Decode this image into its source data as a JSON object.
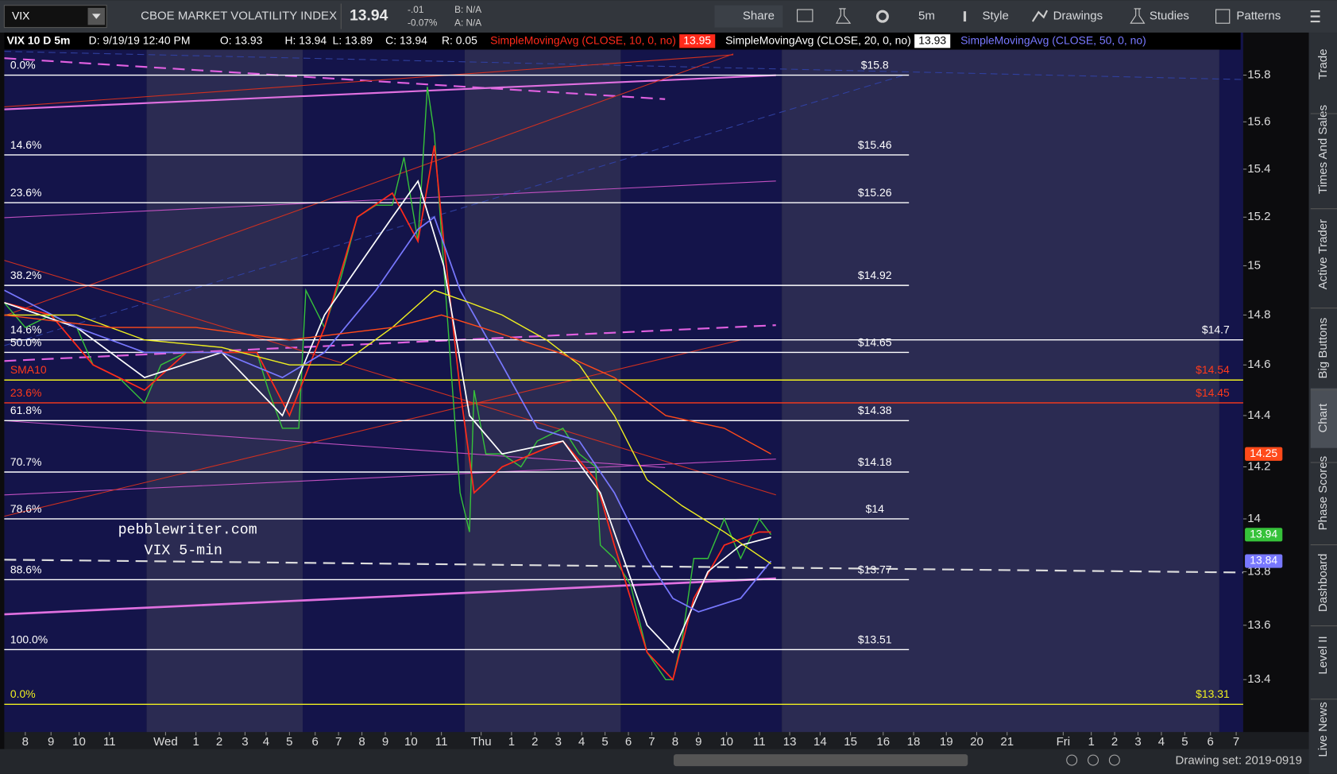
{
  "header": {
    "symbol": "VIX",
    "description": "CBOE MARKET VOLATILITY INDEX",
    "last": "13.94",
    "change": "-.01",
    "change_pct": "-0.07%",
    "bid": "B: N/A",
    "ask": "A: N/A",
    "buttons": [
      "Share",
      "5m",
      "Style",
      "Drawings",
      "Studies",
      "Patterns"
    ]
  },
  "info_bar": {
    "chart": "VIX 10 D 5m",
    "date": "D: 9/19/19 12:40 PM",
    "open": "O: 13.93",
    "high": "H: 13.94",
    "low": "L: 13.89",
    "close": "C: 13.94",
    "range": "R: 0.05"
  },
  "chart_data": {
    "type": "line",
    "log_y": true,
    "grid": false,
    "xlim": [
      0,
      53
    ],
    "ylim": [
      13.21,
      15.91
    ],
    "yticks": [
      15.8,
      15.6,
      15.4,
      15.2,
      15,
      14.8,
      14.6,
      14.4,
      14.2,
      14,
      13.8,
      13.6,
      13.4
    ],
    "xticks": [
      {
        "value": 0.9,
        "label": "8"
      },
      {
        "value": 2.0,
        "label": "9"
      },
      {
        "value": 3.2,
        "label": "10"
      },
      {
        "value": 4.5,
        "label": "11"
      },
      {
        "value": 6.9,
        "label": "Wed"
      },
      {
        "value": 8.2,
        "label": "1"
      },
      {
        "value": 9.2,
        "label": "2"
      },
      {
        "value": 10.3,
        "label": "3"
      },
      {
        "value": 11.2,
        "label": "4"
      },
      {
        "value": 12.2,
        "label": "5"
      },
      {
        "value": 13.3,
        "label": "6"
      },
      {
        "value": 14.3,
        "label": "7"
      },
      {
        "value": 15.3,
        "label": "8"
      },
      {
        "value": 16.3,
        "label": "9"
      },
      {
        "value": 17.4,
        "label": "10"
      },
      {
        "value": 18.7,
        "label": "11"
      },
      {
        "value": 20.4,
        "label": "Thu"
      },
      {
        "value": 21.7,
        "label": "1"
      },
      {
        "value": 22.7,
        "label": "2"
      },
      {
        "value": 23.7,
        "label": "3"
      },
      {
        "value": 24.7,
        "label": "4"
      },
      {
        "value": 25.7,
        "label": "5"
      },
      {
        "value": 26.7,
        "label": "6"
      },
      {
        "value": 27.7,
        "label": "7"
      },
      {
        "value": 28.7,
        "label": "8"
      },
      {
        "value": 29.7,
        "label": "9"
      },
      {
        "value": 30.9,
        "label": "10"
      },
      {
        "value": 32.3,
        "label": "11"
      },
      {
        "value": 33.6,
        "label": "13"
      },
      {
        "value": 34.9,
        "label": "14"
      },
      {
        "value": 36.2,
        "label": "15"
      },
      {
        "value": 37.6,
        "label": "16"
      },
      {
        "value": 38.9,
        "label": "18"
      },
      {
        "value": 40.3,
        "label": "19"
      },
      {
        "value": 41.6,
        "label": "20"
      },
      {
        "value": 42.9,
        "label": "21"
      },
      {
        "value": 45.3,
        "label": "Fri"
      },
      {
        "value": 46.5,
        "label": "1"
      },
      {
        "value": 47.5,
        "label": "2"
      },
      {
        "value": 48.5,
        "label": "3"
      },
      {
        "value": 49.5,
        "label": "4"
      },
      {
        "value": 50.5,
        "label": "5"
      },
      {
        "value": 51.6,
        "label": "6"
      },
      {
        "value": 52.7,
        "label": "7"
      }
    ],
    "series": [
      {
        "color": "#36c23a",
        "badge": true,
        "x": [
          0,
          0.9,
          2.0,
          3.1,
          3.8,
          4.9,
          6.0,
          6.7,
          7.8,
          9.3,
          10.8,
          11.3,
          11.9,
          12.6,
          12.9,
          13.7,
          14.4,
          15.1,
          15.9,
          16.6,
          17.1,
          17.7,
          18.1,
          18.4,
          18.8,
          19.1,
          19.5,
          19.9,
          20.1,
          20.6,
          21.3,
          22.1,
          22.8,
          23.9,
          24.6,
          25.3,
          25.5,
          26.1,
          26.8,
          27.5,
          28.3,
          28.6,
          29.0,
          29.5,
          30.1,
          30.8,
          31.5,
          32.3,
          32.8
        ],
        "values": [
          14.85,
          14.75,
          14.8,
          14.75,
          14.6,
          14.55,
          14.45,
          14.6,
          14.65,
          14.65,
          14.65,
          14.5,
          14.35,
          14.35,
          14.9,
          14.75,
          14.95,
          15.2,
          15.25,
          15.25,
          15.45,
          15.1,
          15.75,
          15.55,
          15.0,
          14.6,
          14.1,
          13.95,
          14.5,
          14.25,
          14.25,
          14.2,
          14.3,
          14.35,
          14.25,
          14.2,
          13.9,
          13.85,
          13.75,
          13.5,
          13.4,
          13.4,
          13.55,
          13.85,
          13.85,
          14.0,
          13.85,
          14.0,
          13.94
        ]
      },
      {
        "name": "SimpleMovingAvg (CLOSE, 10, 0, no)",
        "legend_value": 13.95,
        "color": "#ff2a1a",
        "x": [
          0,
          2.0,
          3.8,
          6.0,
          7.8,
          10.8,
          12.2,
          13.7,
          15.1,
          16.6,
          17.7,
          18.4,
          18.8,
          19.5,
          20.1,
          21.3,
          23.9,
          25.3,
          26.1,
          27.5,
          28.6,
          29.5,
          30.8,
          32.3,
          32.8
        ],
        "values": [
          14.85,
          14.8,
          14.6,
          14.5,
          14.65,
          14.65,
          14.4,
          14.75,
          15.2,
          15.3,
          15.1,
          15.5,
          15.1,
          14.5,
          14.1,
          14.2,
          14.3,
          14.15,
          13.9,
          13.5,
          13.4,
          13.7,
          13.9,
          13.95,
          13.95
        ]
      },
      {
        "name": "SimpleMovingAvg (CLOSE, 20, 0, no)",
        "legend_value": 13.93,
        "color": "#ffffff",
        "x": [
          0,
          3.1,
          6.0,
          9.3,
          11.9,
          13.7,
          16.6,
          17.7,
          18.8,
          19.9,
          21.3,
          23.9,
          25.5,
          27.5,
          28.6,
          30.1,
          31.5,
          32.8
        ],
        "values": [
          14.85,
          14.75,
          14.55,
          14.65,
          14.4,
          14.8,
          15.2,
          15.35,
          15.0,
          14.4,
          14.25,
          14.3,
          14.1,
          13.6,
          13.5,
          13.8,
          13.9,
          13.93
        ]
      },
      {
        "name": "SimpleMovingAvg (CLOSE, 50, 0, no)",
        "color": "#7878ff",
        "badge": true,
        "x": [
          0,
          3.1,
          6.0,
          9.3,
          11.9,
          13.7,
          15.9,
          17.7,
          18.4,
          19.5,
          21.3,
          22.8,
          24.6,
          26.1,
          27.5,
          28.6,
          29.7,
          31.5,
          32.8
        ],
        "values": [
          14.9,
          14.75,
          14.65,
          14.65,
          14.55,
          14.65,
          14.9,
          15.15,
          15.2,
          14.9,
          14.6,
          14.35,
          14.3,
          14.1,
          13.85,
          13.7,
          13.65,
          13.7,
          13.84
        ]
      },
      {
        "color": "#f0f020",
        "x": [
          0,
          3.1,
          6.0,
          9.3,
          12.2,
          14.4,
          16.6,
          18.4,
          19.9,
          21.3,
          23.2,
          24.6,
          26.1,
          27.5,
          29.0,
          30.8,
          32.8
        ],
        "values": [
          14.8,
          14.8,
          14.7,
          14.67,
          14.6,
          14.6,
          14.75,
          14.9,
          14.85,
          14.8,
          14.7,
          14.6,
          14.4,
          14.15,
          14.05,
          13.95,
          13.83
        ]
      },
      {
        "color": "#ff4a1a",
        "badge": true,
        "x": [
          0,
          4.5,
          8.2,
          12.2,
          16.6,
          18.7,
          20.4,
          23.7,
          26.1,
          28.3,
          30.8,
          32.8
        ],
        "values": [
          14.8,
          14.75,
          14.75,
          14.7,
          14.75,
          14.8,
          14.75,
          14.65,
          14.55,
          14.4,
          14.35,
          14.25
        ]
      }
    ],
    "levels": [
      {
        "name": "0.0%",
        "value": 15.8,
        "value_label": "$15.8",
        "color": "#ffffff",
        "extent": "short"
      },
      {
        "name": "14.6%",
        "value": 15.46,
        "value_label": "$15.46",
        "color": "#ffffff",
        "extent": "short"
      },
      {
        "name": "23.6%",
        "value": 15.26,
        "value_label": "$15.26",
        "color": "#ffffff",
        "extent": "short"
      },
      {
        "name": "38.2%",
        "value": 14.92,
        "value_label": "$14.92",
        "color": "#ffffff",
        "extent": "short"
      },
      {
        "name": "14.6%",
        "value": 14.7,
        "value_label": "$14.7",
        "color": "#ffffff",
        "extent": "full"
      },
      {
        "name": "50.0%",
        "value": 14.65,
        "value_label": "$14.65",
        "color": "#ffffff",
        "extent": "short"
      },
      {
        "name": "SMA10",
        "value": 14.54,
        "value_label": "$14.54",
        "color": "#f0f020",
        "label_color": "#ff3a1a",
        "extent": "full"
      },
      {
        "name": "23.6%",
        "value": 14.45,
        "value_label": "$14.45",
        "color": "#ff3a1a",
        "extent": "full"
      },
      {
        "name": "61.8%",
        "value": 14.38,
        "value_label": "$14.38",
        "color": "#ffffff",
        "extent": "short"
      },
      {
        "name": "70.7%",
        "value": 14.18,
        "value_label": "$14.18",
        "color": "#ffffff",
        "extent": "short"
      },
      {
        "name": "78.6%",
        "value": 14,
        "value_label": "$14",
        "color": "#ffffff",
        "extent": "short"
      },
      {
        "name": "88.6%",
        "value": 13.77,
        "value_label": "$13.77",
        "color": "#ffffff",
        "extent": "short"
      },
      {
        "name": "100.0%",
        "value": 13.51,
        "value_label": "$13.51",
        "color": "#ffffff",
        "extent": "short"
      },
      {
        "name": "0.0%",
        "value": 13.31,
        "value_label": "$13.31",
        "color": "#f0f020",
        "extent": "full"
      }
    ]
  },
  "watermark": [
    "pebblewriter.com",
    "VIX 5-min"
  ],
  "sidebar": [
    "Trade",
    "Times And Sales",
    "Active Trader",
    "Big Buttons",
    "Chart",
    "Phase Scores",
    "Dashboard",
    "Level II",
    "Live News"
  ],
  "footer": {
    "drawing_set": "Drawing set: 2019-0919"
  }
}
